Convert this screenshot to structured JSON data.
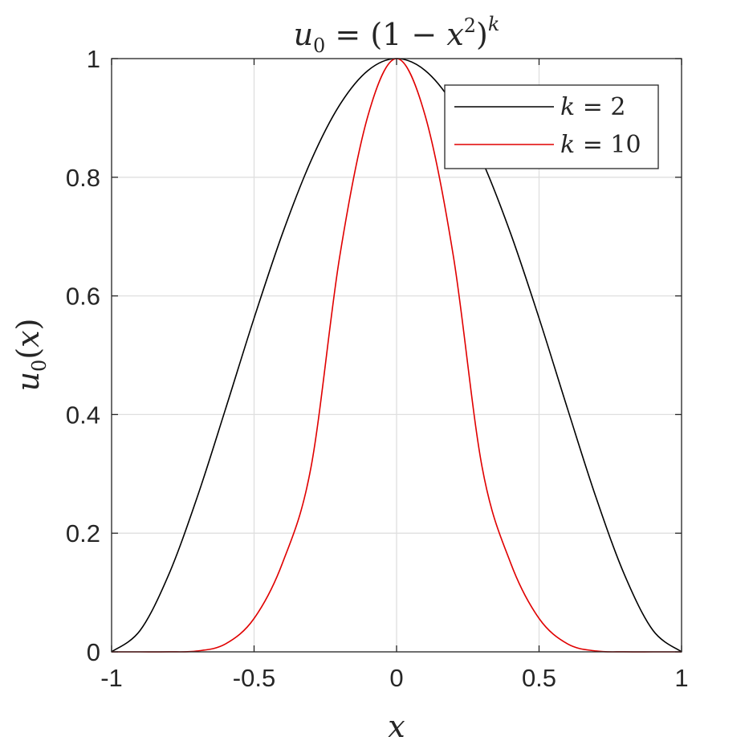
{
  "chart_data": {
    "type": "line",
    "title": "u0 = (1 − x2)k",
    "title_parts": {
      "u": "u",
      "u_sub": "0",
      "eq": " = (1 − ",
      "x": "x",
      "x_sup": "2",
      "close": ")",
      "k": "k"
    },
    "xlabel": "x",
    "ylabel": "u0(x)",
    "ylabel_parts": {
      "u": "u",
      "u_sub": "0",
      "open": "(",
      "x": "x",
      "close": ")"
    },
    "xlim": [
      -1,
      1
    ],
    "ylim": [
      0,
      1
    ],
    "xticks": [
      -1,
      -0.5,
      0,
      0.5,
      1
    ],
    "xtick_labels": [
      "-1",
      "-0.5",
      "0",
      "0.5",
      "1"
    ],
    "yticks": [
      0,
      0.2,
      0.4,
      0.6,
      0.8,
      1
    ],
    "ytick_labels": [
      "0",
      "0.2",
      "0.4",
      "0.6",
      "0.8",
      "1"
    ],
    "grid": true,
    "legend_position": "top-right",
    "x": [
      -1,
      -0.9,
      -0.8,
      -0.7,
      -0.6,
      -0.5,
      -0.4,
      -0.3,
      -0.2,
      -0.1,
      0,
      0.1,
      0.2,
      0.3,
      0.4,
      0.5,
      0.6,
      0.7,
      0.8,
      0.9,
      1
    ],
    "series": [
      {
        "name": "k = 2",
        "legend_label": {
          "k": "k",
          "rest": " = 2"
        },
        "color": "#000000",
        "values": [
          0,
          0.036,
          0.1296,
          0.2601,
          0.4096,
          0.5625,
          0.7056,
          0.8281,
          0.9216,
          0.9801,
          1,
          0.9801,
          0.9216,
          0.8281,
          0.7056,
          0.5625,
          0.4096,
          0.2601,
          0.1296,
          0.036,
          0
        ]
      },
      {
        "name": "k = 10",
        "legend_label": {
          "k": "k",
          "rest": " = 10"
        },
        "color": "#e00000",
        "values": [
          0,
          1e-07,
          3.66e-05,
          0.0014,
          0.0134,
          0.0563,
          0.1501,
          0.3118,
          0.6649,
          0.9044,
          1,
          0.9044,
          0.6649,
          0.3118,
          0.1501,
          0.0563,
          0.0134,
          0.0014,
          3.66e-05,
          1e-07,
          0
        ]
      }
    ]
  }
}
